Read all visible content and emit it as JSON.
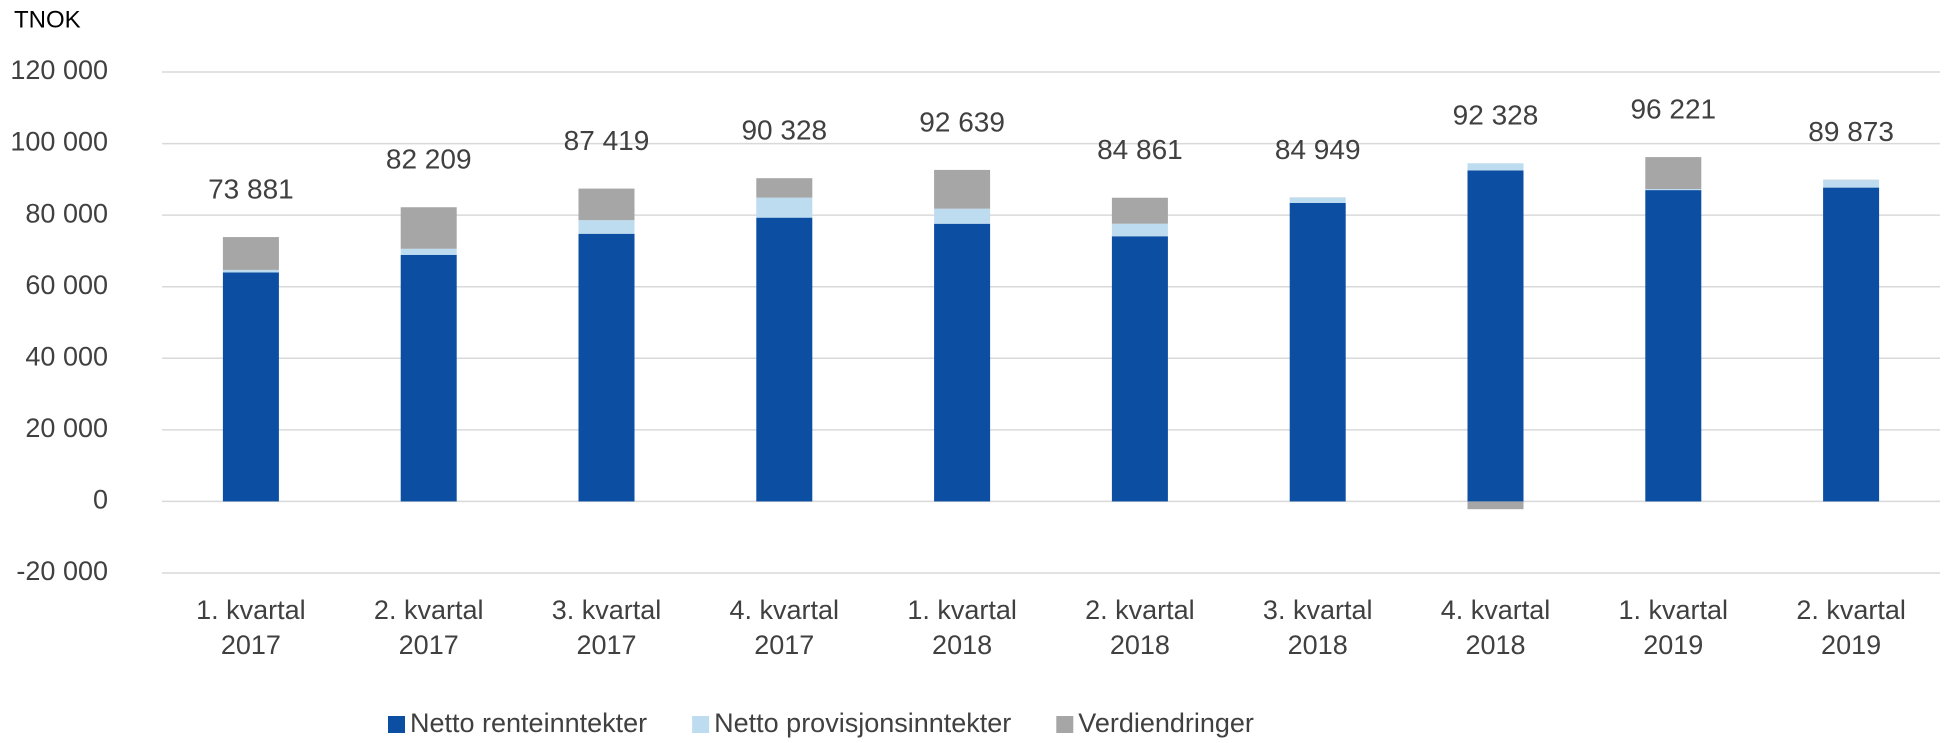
{
  "chart_data": {
    "type": "stacked_bar",
    "y_axis_label": "TNOK",
    "categories": [
      [
        "1. kvartal",
        "2017"
      ],
      [
        "2. kvartal",
        "2017"
      ],
      [
        "3. kvartal",
        "2017"
      ],
      [
        "4. kvartal",
        "2017"
      ],
      [
        "1. kvartal",
        "2018"
      ],
      [
        "2. kvartal",
        "2018"
      ],
      [
        "3. kvartal",
        "2018"
      ],
      [
        "4. kvartal",
        "2018"
      ],
      [
        "1. kvartal",
        "2019"
      ],
      [
        "2. kvartal",
        "2019"
      ]
    ],
    "series": [
      {
        "name": "Netto renteinntekter",
        "color": "#0b4ea2",
        "values": [
          64000,
          68900,
          74800,
          79300,
          77600,
          74100,
          83400,
          92500,
          87000,
          87700
        ]
      },
      {
        "name": "Netto provisjonsinntekter",
        "color": "#bddcf0",
        "values": [
          700,
          1700,
          3800,
          5600,
          4200,
          3500,
          1500,
          2000,
          300,
          2100
        ]
      },
      {
        "name": "Verdiendringer",
        "color": "#a6a6a6",
        "values": [
          9181,
          11609,
          8819,
          5428,
          10839,
          7261,
          49,
          -2172,
          8921,
          73
        ]
      }
    ],
    "totals": [
      73881,
      82209,
      87419,
      90328,
      92639,
      84861,
      84949,
      92328,
      96221,
      89873
    ],
    "total_labels": [
      "73 881",
      "82 209",
      "87 419",
      "90 328",
      "92 639",
      "84 861",
      "84 949",
      "92 328",
      "96 221",
      "89 873"
    ],
    "ylim": [
      -20000,
      120000
    ],
    "yticks": [
      {
        "value": -20000,
        "label": "-20 000"
      },
      0,
      {
        "value": 20000,
        "label": "20 000"
      },
      {
        "value": 40000,
        "label": "40 000"
      },
      {
        "value": 60000,
        "label": "60 000"
      },
      {
        "value": 80000,
        "label": "80 000"
      },
      {
        "value": 100000,
        "label": "100 000"
      },
      {
        "value": 120000,
        "label": "120 000"
      }
    ],
    "grid": true,
    "legend": "bottom"
  }
}
